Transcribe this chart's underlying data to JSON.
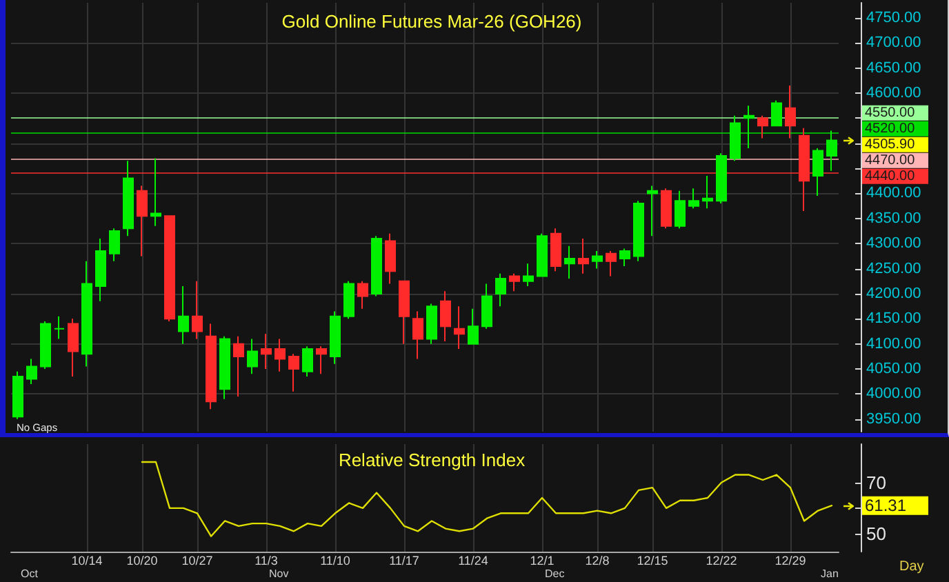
{
  "chart_data": [
    {
      "type": "candlestick",
      "title": "Gold Online Futures Mar-26 (GOH26)",
      "categories": [
        null,
        null,
        null,
        null,
        null,
        null,
        null,
        null,
        null,
        null,
        null,
        null,
        null,
        null,
        null,
        null,
        null,
        null,
        null,
        null,
        null,
        null,
        null,
        null,
        null,
        null,
        null,
        null,
        null,
        null,
        null,
        null,
        null,
        null,
        null,
        null,
        null,
        null,
        null,
        null,
        null,
        null,
        null,
        null,
        null,
        null,
        null,
        null,
        null,
        null,
        null,
        null,
        null,
        null,
        null,
        null,
        null,
        null,
        null,
        null
      ],
      "ohlc": [
        [
          3955,
          4045,
          3950,
          4035
        ],
        [
          4030,
          4070,
          4020,
          4055
        ],
        [
          4055,
          4145,
          4050,
          4140
        ],
        [
          4130,
          4155,
          4110,
          4130
        ],
        [
          4140,
          4150,
          4035,
          4085
        ],
        [
          4080,
          4265,
          4055,
          4220
        ],
        [
          4215,
          4310,
          4185,
          4285
        ],
        [
          4280,
          4330,
          4265,
          4325
        ],
        [
          4330,
          4465,
          4315,
          4430
        ],
        [
          4405,
          4415,
          4275,
          4355
        ],
        [
          4355,
          4470,
          4335,
          4360
        ],
        [
          4355,
          4355,
          4145,
          4150
        ],
        [
          4125,
          4215,
          4100,
          4155
        ],
        [
          4155,
          4225,
          4110,
          4125
        ],
        [
          4115,
          4140,
          3970,
          3985
        ],
        [
          4010,
          4115,
          3990,
          4110
        ],
        [
          4100,
          4115,
          3995,
          4075
        ],
        [
          4055,
          4110,
          4040,
          4085
        ],
        [
          4090,
          4120,
          4050,
          4080
        ],
        [
          4090,
          4110,
          4045,
          4070
        ],
        [
          4075,
          4080,
          4005,
          4050
        ],
        [
          4045,
          4095,
          4035,
          4090
        ],
        [
          4090,
          4095,
          4040,
          4080
        ],
        [
          4075,
          4165,
          4060,
          4155
        ],
        [
          4155,
          4225,
          4150,
          4220
        ],
        [
          4220,
          4225,
          4170,
          4195
        ],
        [
          4200,
          4315,
          4195,
          4310
        ],
        [
          4305,
          4320,
          4220,
          4245
        ],
        [
          4225,
          4225,
          4100,
          4155
        ],
        [
          4150,
          4165,
          4070,
          4110
        ],
        [
          4110,
          4180,
          4100,
          4175
        ],
        [
          4185,
          4205,
          4105,
          4135
        ],
        [
          4130,
          4175,
          4090,
          4120
        ],
        [
          4100,
          4170,
          4100,
          4135
        ],
        [
          4135,
          4220,
          4130,
          4195
        ],
        [
          4200,
          4240,
          4175,
          4230
        ],
        [
          4235,
          4240,
          4205,
          4225
        ],
        [
          4225,
          4260,
          4215,
          4235
        ],
        [
          4235,
          4320,
          4235,
          4315
        ],
        [
          4320,
          4330,
          4245,
          4255
        ],
        [
          4260,
          4295,
          4230,
          4270
        ],
        [
          4270,
          4310,
          4240,
          4260
        ],
        [
          4265,
          4285,
          4250,
          4275
        ],
        [
          4280,
          4285,
          4235,
          4265
        ],
        [
          4270,
          4290,
          4255,
          4285
        ],
        [
          4275,
          4385,
          4265,
          4380
        ],
        [
          4400,
          4415,
          4315,
          4405
        ],
        [
          4405,
          4410,
          4330,
          4335
        ],
        [
          4335,
          4405,
          4330,
          4385
        ],
        [
          4375,
          4410,
          4370,
          4385
        ],
        [
          4385,
          4435,
          4370,
          4390
        ],
        [
          4385,
          4480,
          4380,
          4475
        ],
        [
          4470,
          4555,
          4465,
          4540
        ],
        [
          4550,
          4575,
          4490,
          4555
        ],
        [
          4550,
          4555,
          4510,
          4535
        ],
        [
          4535,
          4585,
          4535,
          4580
        ],
        [
          4570,
          4615,
          4510,
          4535
        ],
        [
          4515,
          4530,
          4365,
          4425
        ],
        [
          4435,
          4490,
          4395,
          4485
        ],
        [
          4475,
          4525,
          4445,
          4505.9
        ]
      ],
      "colors": [
        "#00f000",
        "#00f000",
        "#00f000",
        "#00f000",
        "#ff2b2b",
        "#00f000",
        "#00f000",
        "#00f000",
        "#00f000",
        "#ff2b2b",
        "#00f000",
        "#ff2b2b",
        "#00f000",
        "#ff2b2b",
        "#ff2b2b",
        "#00f000",
        "#ff2b2b",
        "#00f000",
        "#ff2b2b",
        "#ff2b2b",
        "#ff2b2b",
        "#00f000",
        "#ff2b2b",
        "#00f000",
        "#00f000",
        "#ff2b2b",
        "#00f000",
        "#ff2b2b",
        "#ff2b2b",
        "#ff2b2b",
        "#00f000",
        "#ff2b2b",
        "#ff2b2b",
        "#00f000",
        "#00f000",
        "#00f000",
        "#ff2b2b",
        "#00f000",
        "#00f000",
        "#ff2b2b",
        "#00f000",
        "#ff2b2b",
        "#00f000",
        "#ff2b2b",
        "#00f000",
        "#00f000",
        "#00f000",
        "#ff2b2b",
        "#00f000",
        "#00f000",
        "#00f000",
        "#00f000",
        "#00f000",
        "#00f000",
        "#ff2b2b",
        "#00f000",
        "#ff2b2b",
        "#ff2b2b",
        "#00f000",
        "#00f000"
      ],
      "ylim": [
        3925,
        4780
      ],
      "yticks": [
        {
          "value": 3950,
          "label": "3950.00"
        },
        {
          "value": 4000,
          "label": "4000.00"
        },
        {
          "value": 4050,
          "label": "4050.00"
        },
        {
          "value": 4100,
          "label": "4100.00"
        },
        {
          "value": 4150,
          "label": "4150.00"
        },
        {
          "value": 4200,
          "label": "4200.00"
        },
        {
          "value": 4250,
          "label": "4250.00"
        },
        {
          "value": 4300,
          "label": "4300.00"
        },
        {
          "value": 4350,
          "label": "4350.00"
        },
        {
          "value": 4400,
          "label": "4400.00"
        },
        {
          "value": 4450,
          "label": null
        },
        {
          "value": 4500,
          "label": null
        },
        {
          "value": 4550,
          "label": null
        },
        {
          "value": 4600,
          "label": "4600.00"
        },
        {
          "value": 4650,
          "label": "4650.00"
        },
        {
          "value": 4700,
          "label": "4700.00"
        },
        {
          "value": 4750,
          "label": "4750.00"
        }
      ],
      "grid": true,
      "tick_labels": "y",
      "ref_lines": [
        {
          "axis": "y",
          "value": 4550,
          "label": "4550.00",
          "color": "#99ff99"
        },
        {
          "axis": "y",
          "value": 4520,
          "label": "4520.00",
          "color": "#00dd00"
        },
        {
          "axis": "y",
          "value": 4470,
          "label": "4470.00",
          "color": "#ffb5b5"
        },
        {
          "axis": "y",
          "value": 4440,
          "label": "4440.00",
          "color": "#ff3030"
        }
      ],
      "annotations": [
        "No Gaps",
        "4505.90"
      ]
    },
    {
      "type": "line",
      "title": "Relative Strength Index",
      "categories": [
        null,
        null,
        null,
        null,
        null,
        "10/14",
        null,
        null,
        null,
        "10/20",
        null,
        null,
        null,
        "10/27",
        null,
        null,
        null,
        null,
        "11/3",
        null,
        null,
        null,
        null,
        "11/10",
        null,
        null,
        null,
        null,
        "11/17",
        null,
        null,
        null,
        null,
        "11/24",
        null,
        null,
        null,
        null,
        "12/1",
        null,
        null,
        null,
        "12/8",
        null,
        null,
        null,
        "12/15",
        null,
        null,
        null,
        null,
        "12/22",
        null,
        null,
        null,
        null,
        "12/29",
        null,
        null,
        null
      ],
      "values": [
        null,
        null,
        null,
        null,
        null,
        null,
        null,
        null,
        null,
        78,
        78,
        60,
        60,
        58,
        49,
        55,
        53,
        54,
        54,
        53,
        51,
        54,
        53,
        58,
        62,
        60,
        66,
        60,
        53,
        51,
        55,
        52,
        51,
        52,
        56,
        58,
        58,
        58,
        64,
        58,
        58,
        58,
        59,
        58,
        60,
        67,
        68,
        60,
        63,
        63,
        64,
        70,
        73,
        73,
        71,
        73,
        68,
        55,
        59,
        61
      ],
      "color": "#dede00",
      "marker": "none",
      "ylim": [
        43,
        85
      ],
      "yticks": [
        50,
        {
          "value": 60,
          "label": null
        },
        70
      ],
      "grid": "x",
      "xlabel": "Day",
      "annotations": [
        "61.31",
        "Oct",
        "Nov",
        "Dec",
        "Jan"
      ]
    }
  ]
}
